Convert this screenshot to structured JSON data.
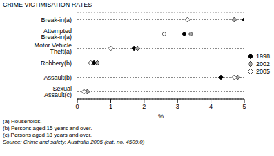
{
  "chart_data": {
    "type": "scatter",
    "orientation": "horizontal",
    "title": "CRIME VICTIMISATION RATES",
    "categories": [
      "Break-in(a)",
      "Attempted Break-in(a)",
      "Motor Vehicle Theft(a)",
      "Robbery(b)",
      "Assault(b)",
      "Sexual Assault(c)"
    ],
    "series": [
      {
        "name": "1998",
        "color": "#000000",
        "marker": "diamond",
        "values": [
          5.0,
          3.2,
          1.7,
          0.5,
          4.3,
          null
        ]
      },
      {
        "name": "2002",
        "color": "#a6a6a6",
        "marker": "diamond",
        "values": [
          4.7,
          3.4,
          1.8,
          0.6,
          4.8,
          0.3
        ]
      },
      {
        "name": "2005",
        "color": "#ffffff",
        "marker": "diamond",
        "values": [
          3.3,
          2.6,
          1.0,
          0.4,
          4.7,
          0.2
        ]
      }
    ],
    "xlabel": "%",
    "xlim": [
      0,
      5
    ],
    "xticks": [
      0,
      1,
      2,
      3,
      4,
      5
    ],
    "grid": true,
    "legend": "right",
    "notes": [
      "(a) Households.",
      "(b) Persons aged 15 years and over.",
      "(c) Persons aged 18 years and over."
    ],
    "source": "Source: Crime and safety, Australia 2005 (cat. no. 4509.0)"
  }
}
